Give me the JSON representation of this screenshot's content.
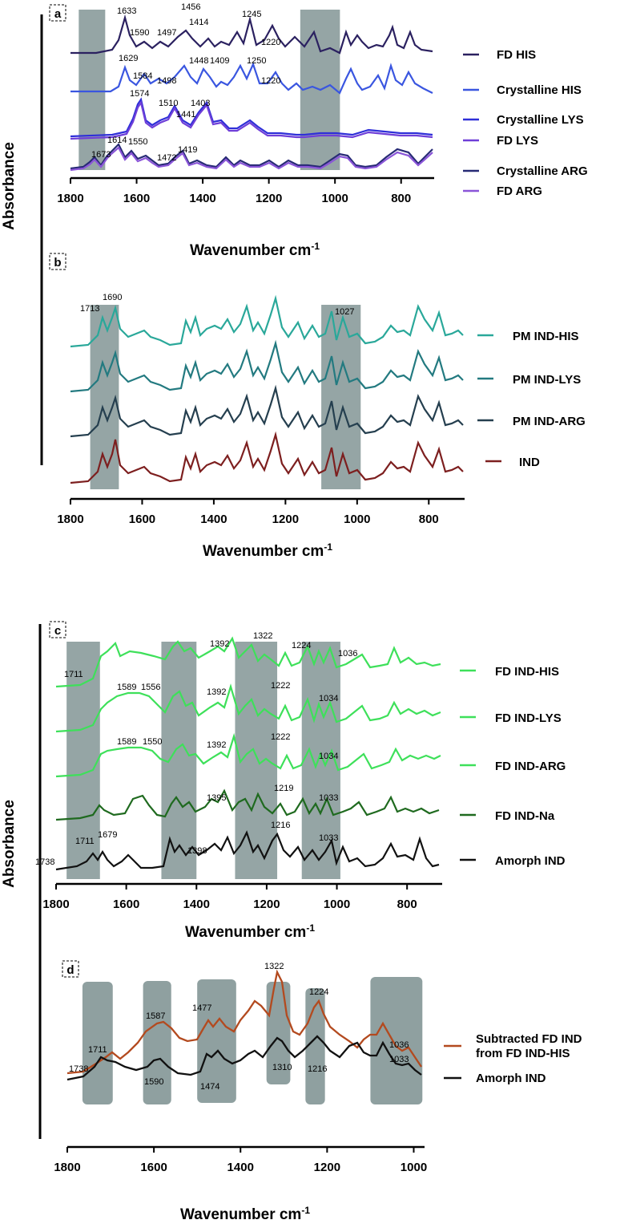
{
  "figure": {
    "ylabel_top": "Absorbance",
    "ylabel_bottom": "Absorbance"
  },
  "chart_data": [
    {
      "id": "a",
      "type": "line",
      "panel_label": "a",
      "xlabel": "Wavenumber cm",
      "xlabel_sup": "-1",
      "xlim": [
        1800,
        700
      ],
      "ticks": [
        1800,
        1600,
        1400,
        1200,
        1000,
        800
      ],
      "tick_labels": [
        "1800",
        "1600",
        "1400",
        "1200",
        "1000",
        "800"
      ],
      "shaded_ranges": [
        [
          1775,
          1695
        ],
        [
          1105,
          985
        ]
      ],
      "series": [
        {
          "name": "FD HIS",
          "color": "#2b2160",
          "peaks": [
            1633,
            1590,
            1497,
            1456,
            1414,
            1245,
            1220
          ]
        },
        {
          "name": "Crystalline HIS",
          "color": "#3a56e0",
          "peaks": [
            1629,
            1584,
            1498,
            1448,
            1409,
            1250,
            1220
          ]
        },
        {
          "name": "Crystalline LYS",
          "color": "#2f2fd8",
          "peaks": [
            1574,
            1510,
            1441,
            1403
          ]
        },
        {
          "name": "FD LYS",
          "color": "#6f3fd8",
          "peaks": [
            1574,
            1510,
            1441,
            1403
          ]
        },
        {
          "name": "Crystalline ARG",
          "color": "#272a75",
          "peaks": [
            1673,
            1614,
            1550,
            1472,
            1419
          ]
        },
        {
          "name": "FD ARG",
          "color": "#8a55d8",
          "peaks": [
            1673,
            1614,
            1550,
            1472,
            1419
          ]
        }
      ],
      "annotations": [
        "1633",
        "1590",
        "1497",
        "1456",
        "1414",
        "1245",
        "1220",
        "1629",
        "1584",
        "1498",
        "1448",
        "1409",
        "1250",
        "1220",
        "1574",
        "1510",
        "1441",
        "1403",
        "1673",
        "1614",
        "1550",
        "1472",
        "1419"
      ]
    },
    {
      "id": "b",
      "type": "line",
      "panel_label": "b",
      "xlabel": "Wavenumber cm",
      "xlabel_sup": "-1",
      "xlim": [
        1800,
        700
      ],
      "ticks": [
        1800,
        1600,
        1400,
        1200,
        1000,
        800
      ],
      "tick_labels": [
        "1800",
        "1600",
        "1400",
        "1200",
        "1000",
        "800"
      ],
      "shaded_ranges": [
        [
          1745,
          1665
        ],
        [
          1100,
          990
        ]
      ],
      "series": [
        {
          "name": "PM IND-HIS",
          "color": "#2aa89a"
        },
        {
          "name": "PM IND-LYS",
          "color": "#237a80"
        },
        {
          "name": "PM IND-ARG",
          "color": "#253f4f"
        },
        {
          "name": "IND",
          "color": "#7d1f1f"
        }
      ],
      "annotations": [
        "1713",
        "1690",
        "1027"
      ]
    },
    {
      "id": "c",
      "type": "line",
      "panel_label": "c",
      "xlabel": "Wavenumber cm",
      "xlabel_sup": "-1",
      "xlim": [
        1800,
        700
      ],
      "ticks": [
        1800,
        1600,
        1400,
        1200,
        1000,
        800
      ],
      "tick_labels": [
        "1800",
        "1600",
        "1400",
        "1200",
        "1000",
        "800"
      ],
      "shaded_ranges": [
        [
          1770,
          1675
        ],
        [
          1500,
          1400
        ],
        [
          1290,
          1170
        ],
        [
          1100,
          990
        ]
      ],
      "series": [
        {
          "name": "FD IND-HIS",
          "color": "#3ee05a"
        },
        {
          "name": "FD IND-LYS",
          "color": "#3ee05a"
        },
        {
          "name": "FD IND-ARG",
          "color": "#3ee05a"
        },
        {
          "name": "FD IND-Na",
          "color": "#1f6a1f"
        },
        {
          "name": "Amorph IND",
          "color": "#111111"
        }
      ],
      "annotations": [
        "1711",
        "1392",
        "1322",
        "1224",
        "1036",
        "1589",
        "1556",
        "1392",
        "1222",
        "1034",
        "1589",
        "1550",
        "1392",
        "1222",
        "1034",
        "1395",
        "1219",
        "1033",
        "1738",
        "1711",
        "1679",
        "1398",
        "1216",
        "1033"
      ]
    },
    {
      "id": "d",
      "type": "line",
      "panel_label": "d",
      "xlabel": "Wavenumber cm",
      "xlabel_sup": "-1",
      "xlim": [
        1800,
        975
      ],
      "ticks": [
        1800,
        1600,
        1400,
        1200,
        1000
      ],
      "tick_labels": [
        "1800",
        "1600",
        "1400",
        "1200",
        "1000"
      ],
      "shaded_ranges": [
        [
          1765,
          1695
        ],
        [
          1625,
          1560
        ],
        [
          1500,
          1410
        ],
        [
          1340,
          1285
        ],
        [
          1250,
          1205
        ],
        [
          1100,
          980
        ]
      ],
      "series": [
        {
          "name": "Subtracted FD IND from FD IND-HIS",
          "legend_lines": [
            "Subtracted FD IND",
            "from FD IND-HIS"
          ],
          "color": "#b34a1f"
        },
        {
          "name": "Amorph IND",
          "color": "#111111"
        }
      ],
      "annotations": [
        "1711",
        "1738",
        "1587",
        "1590",
        "1477",
        "1474",
        "1322",
        "1310",
        "1224",
        "1216",
        "1036",
        "1033"
      ]
    }
  ]
}
